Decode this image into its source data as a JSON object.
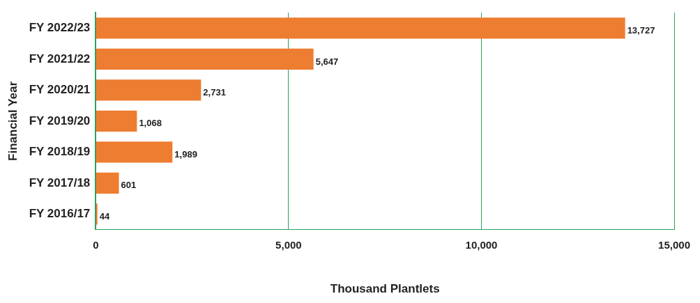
{
  "chart_data": {
    "type": "bar",
    "orientation": "horizontal",
    "xlabel": "Thousand Plantlets",
    "ylabel": "Financial Year",
    "categories": [
      "FY 2022/23",
      "FY 2021/22",
      "FY 2020/21",
      "FY 2019/20",
      "FY 2018/19",
      "FY 2017/18",
      "FY 2016/17"
    ],
    "values": [
      13727,
      5647,
      2731,
      1068,
      1989,
      601,
      44
    ],
    "color": "#ed7d31",
    "xlim": [
      0,
      15000
    ],
    "xticks": [
      {
        "value": 0,
        "label": "0"
      },
      {
        "value": 5000,
        "label": "5,000"
      },
      {
        "value": 10000,
        "label": "10,000"
      },
      {
        "value": 15000,
        "label": "15,000"
      }
    ],
    "grid": "x",
    "legend": false,
    "value_labels": [
      "13,727",
      "5,647",
      "2,731",
      "1,068",
      "1,989",
      "601",
      "44"
    ]
  }
}
